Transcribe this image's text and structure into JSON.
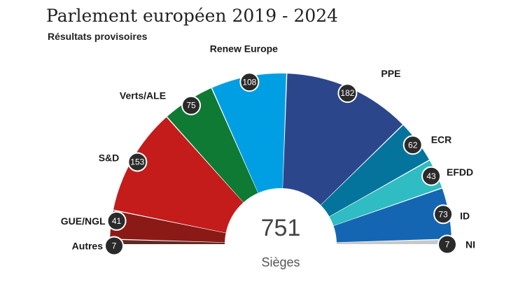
{
  "chart_data": {
    "type": "pie",
    "variant": "parliament-semicircle",
    "title": "Parlement européen 2019 - 2024",
    "subtitle": "Résultats provisoires",
    "total": "751",
    "total_label": "Sièges",
    "order": "left-to-right",
    "parties": [
      {
        "name": "Autres",
        "seats": 7,
        "color": "#5c2b24"
      },
      {
        "name": "GUE/NGL",
        "seats": 41,
        "color": "#8b1a17"
      },
      {
        "name": "S&D",
        "seats": 153,
        "color": "#c41b1b"
      },
      {
        "name": "Verts/ALE",
        "seats": 75,
        "color": "#0e7a33"
      },
      {
        "name": "Renew Europe",
        "seats": 108,
        "color": "#009fe3"
      },
      {
        "name": "PPE",
        "seats": 182,
        "color": "#2c468c"
      },
      {
        "name": "ECR",
        "seats": 62,
        "color": "#05749c"
      },
      {
        "name": "EFDD",
        "seats": 43,
        "color": "#2fbcc3"
      },
      {
        "name": "ID",
        "seats": 73,
        "color": "#1466b3"
      },
      {
        "name": "NI",
        "seats": 7,
        "color": "#c8c8c8"
      }
    ]
  }
}
